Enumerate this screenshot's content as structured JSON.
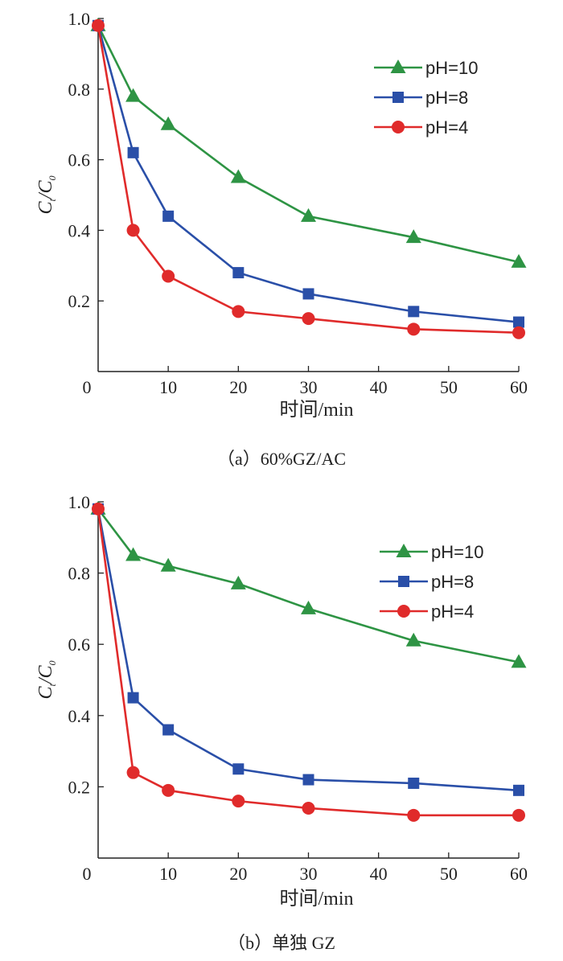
{
  "chart_data": [
    {
      "type": "line",
      "caption": "（a）60%GZ/AC",
      "xlabel": "时间/min",
      "ylabel": {
        "main": "C",
        "sub1": "t",
        "slash": "/C",
        "sub2": "0"
      },
      "xlim": [
        0,
        60
      ],
      "ylim": [
        0,
        1.0
      ],
      "xticks": [
        "0",
        "10",
        "20",
        "30",
        "40",
        "50",
        "60"
      ],
      "yticks": [
        "1.0",
        "0.8",
        "0.6",
        "0.4",
        "0.2"
      ],
      "x": [
        0,
        5,
        10,
        20,
        30,
        45,
        60
      ],
      "series": [
        {
          "name": "pH=10",
          "marker": "triangle",
          "color": "#2e9444",
          "values": [
            0.98,
            0.78,
            0.7,
            0.55,
            0.44,
            0.38,
            0.31
          ]
        },
        {
          "name": "pH=8",
          "marker": "square",
          "color": "#2a4fa8",
          "values": [
            0.98,
            0.62,
            0.44,
            0.28,
            0.22,
            0.17,
            0.14
          ]
        },
        {
          "name": "pH=4",
          "marker": "circle",
          "color": "#e02b2b",
          "values": [
            0.98,
            0.4,
            0.27,
            0.17,
            0.15,
            0.12,
            0.11
          ]
        }
      ],
      "legend": "top-right"
    },
    {
      "type": "line",
      "caption": "（b）单独 GZ",
      "xlabel": "时间/min",
      "ylabel": {
        "main": "C",
        "sub1": "t",
        "slash": "/C",
        "sub2": "0"
      },
      "xlim": [
        0,
        60
      ],
      "ylim": [
        0,
        1.0
      ],
      "xticks": [
        "0",
        "10",
        "20",
        "30",
        "40",
        "50",
        "60"
      ],
      "yticks": [
        "1.0",
        "0.8",
        "0.6",
        "0.4",
        "0.2"
      ],
      "x": [
        0,
        5,
        10,
        20,
        30,
        45,
        60
      ],
      "series": [
        {
          "name": "pH=10",
          "marker": "triangle",
          "color": "#2e9444",
          "values": [
            0.98,
            0.85,
            0.82,
            0.77,
            0.7,
            0.61,
            0.55
          ]
        },
        {
          "name": "pH=8",
          "marker": "square",
          "color": "#2a4fa8",
          "values": [
            0.98,
            0.45,
            0.36,
            0.25,
            0.22,
            0.21,
            0.19
          ]
        },
        {
          "name": "pH=4",
          "marker": "circle",
          "color": "#e02b2b",
          "values": [
            0.98,
            0.24,
            0.19,
            0.16,
            0.14,
            0.12,
            0.12
          ]
        }
      ],
      "legend": "top-right"
    }
  ]
}
